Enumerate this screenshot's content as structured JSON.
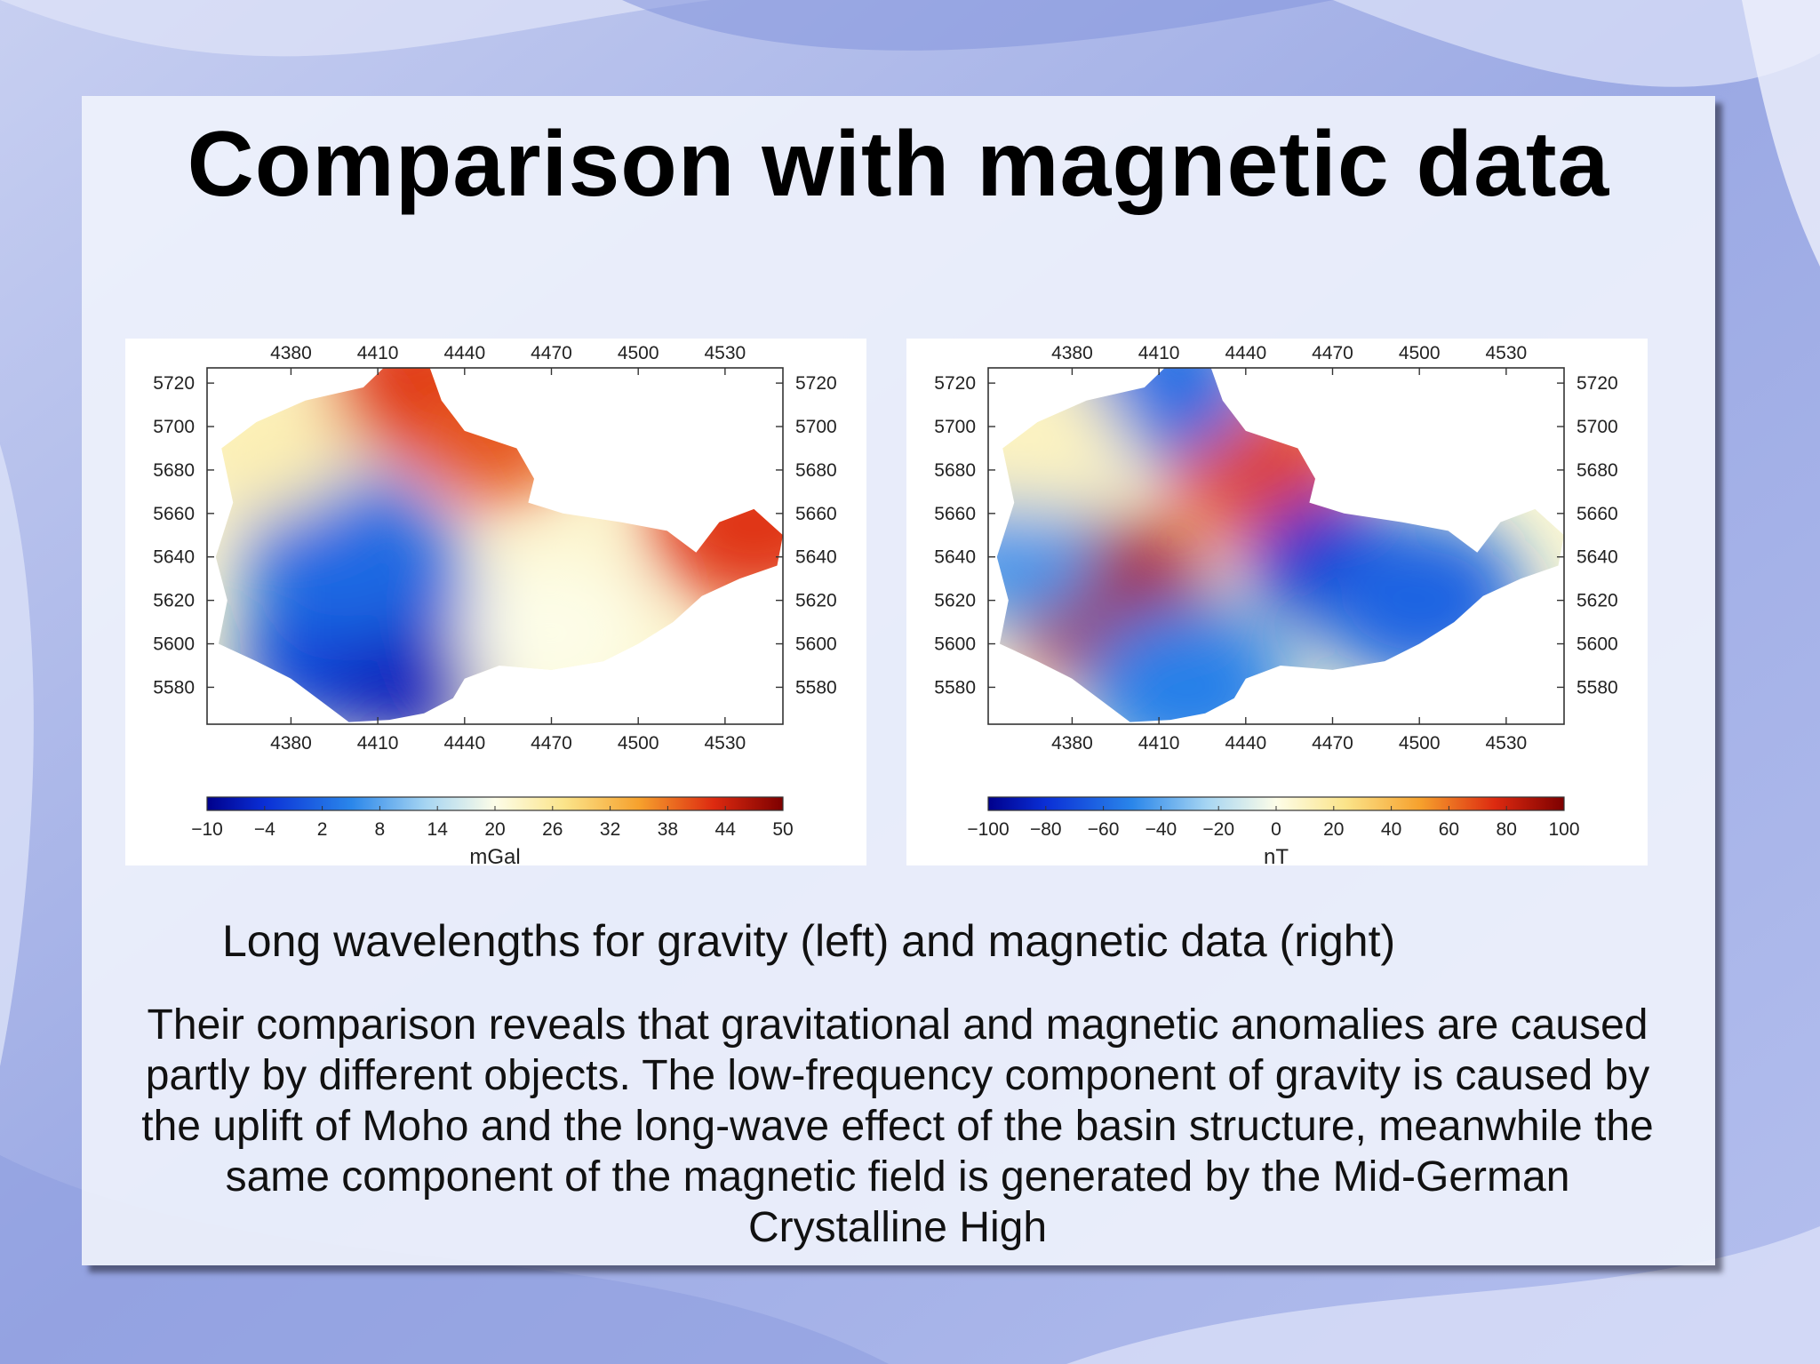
{
  "slide": {
    "title": "Comparison with magnetic data",
    "caption": "Long wavelengths for gravity (left) and magnetic data (right)",
    "body": "Their comparison reveals that gravitational and magnetic anomalies are caused partly by different objects. The low-frequency component of gravity is caused by the uplift of Moho and the long-wave effect of the basin structure, meanwhile the same component of the magnetic field is generated by the Mid-German Crystalline High"
  },
  "colors": {
    "low": "#00008c",
    "mid": "#fdfde8",
    "high": "#7d0000"
  },
  "chart_data": [
    {
      "type": "heatmap",
      "name": "gravity",
      "x_ticks": [
        "4380",
        "4410",
        "4440",
        "4470",
        "4500",
        "4530"
      ],
      "y_ticks": [
        "5720",
        "5700",
        "5680",
        "5660",
        "5640",
        "5620",
        "5600",
        "5580"
      ],
      "x_range": [
        4351,
        4550
      ],
      "y_range": [
        5563,
        5727
      ],
      "colorbar": {
        "ticks": [
          "−10",
          "−4",
          "2",
          "8",
          "14",
          "20",
          "26",
          "32",
          "38",
          "44",
          "50"
        ],
        "range": [
          -10,
          50
        ],
        "unit": "mGal"
      },
      "anomalies": [
        {
          "x": 4410,
          "y": 5615,
          "value": -4
        },
        {
          "x": 4395,
          "y": 5595,
          "value": -2
        },
        {
          "x": 4420,
          "y": 5585,
          "value": -6
        },
        {
          "x": 4400,
          "y": 5640,
          "value": 2
        },
        {
          "x": 4425,
          "y": 5720,
          "value": 42
        },
        {
          "x": 4450,
          "y": 5695,
          "value": 40
        },
        {
          "x": 4540,
          "y": 5655,
          "value": 42
        },
        {
          "x": 4470,
          "y": 5605,
          "value": 20
        },
        {
          "x": 4372,
          "y": 5690,
          "value": 24
        }
      ]
    },
    {
      "type": "heatmap",
      "name": "magnetic",
      "x_ticks": [
        "4380",
        "4410",
        "4440",
        "4470",
        "4500",
        "4530"
      ],
      "y_ticks": [
        "5720",
        "5700",
        "5680",
        "5660",
        "5640",
        "5620",
        "5600",
        "5580"
      ],
      "x_range": [
        4351,
        4550
      ],
      "y_range": [
        5563,
        5727
      ],
      "colorbar": {
        "ticks": [
          "−100",
          "−80",
          "−60",
          "−40",
          "−20",
          "0",
          "20",
          "40",
          "60",
          "80",
          "100"
        ],
        "range": [
          -100,
          100
        ],
        "unit": "nT"
      },
      "anomalies": [
        {
          "x": 4392,
          "y": 5620,
          "value": 90
        },
        {
          "x": 4445,
          "y": 5682,
          "value": 70
        },
        {
          "x": 4470,
          "y": 5638,
          "value": -82
        },
        {
          "x": 4500,
          "y": 5620,
          "value": -62
        },
        {
          "x": 4410,
          "y": 5720,
          "value": -58
        },
        {
          "x": 4360,
          "y": 5640,
          "value": -45
        },
        {
          "x": 4420,
          "y": 5580,
          "value": -52
        },
        {
          "x": 4365,
          "y": 5695,
          "value": 10
        }
      ]
    }
  ]
}
